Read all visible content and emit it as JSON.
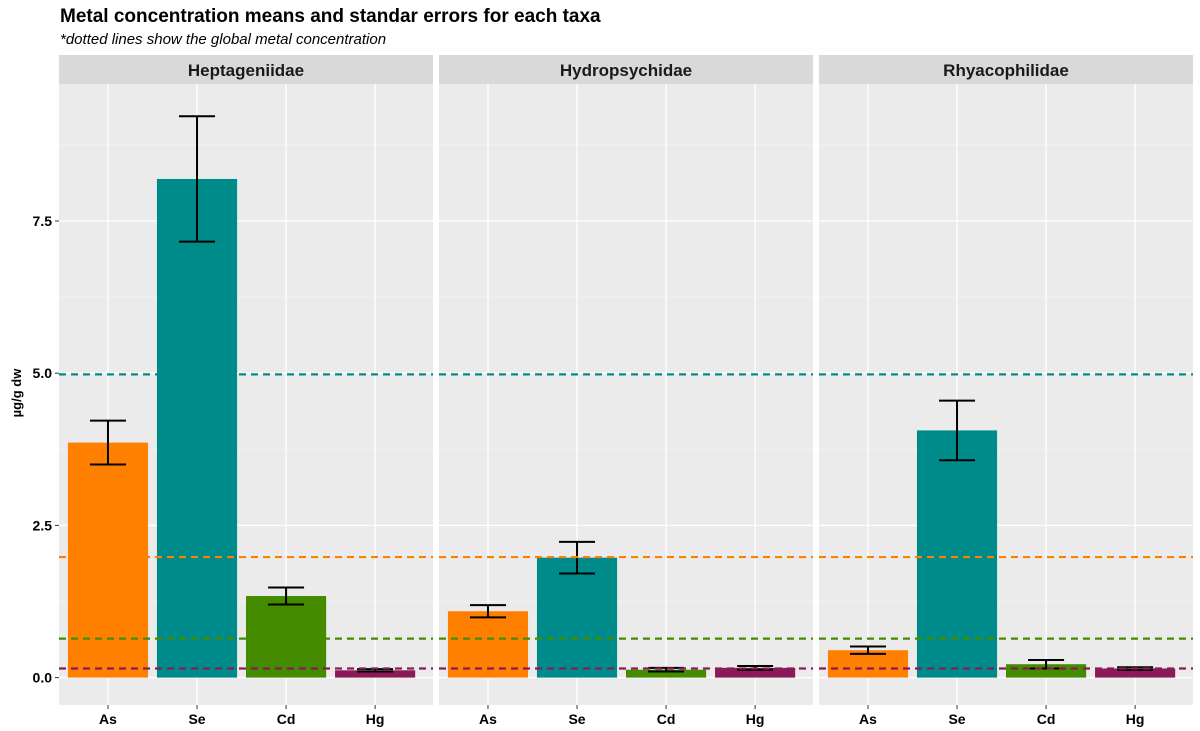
{
  "title": "Metal concentration means and standar errors for each taxa",
  "subtitle": "*dotted lines show the global metal concentration",
  "chart_data": {
    "type": "bar",
    "ylabel": "µg/g dw",
    "xlabel": "",
    "ylim": [
      -0.45,
      9.75
    ],
    "yticks": [
      0.0,
      2.5,
      5.0,
      7.5
    ],
    "ytick_labels": [
      "0.0",
      "2.5",
      "5.0",
      "7.5"
    ],
    "grid": true,
    "categories": [
      "As",
      "Se",
      "Cd",
      "Hg"
    ],
    "colors": {
      "As": "#ff7f00",
      "Se": "#008b8b",
      "Cd": "#458b00",
      "Hg": "#8b1a58"
    },
    "reference_lines": [
      {
        "metal": "Se",
        "value": 4.98,
        "color": "#008b8b"
      },
      {
        "metal": "As",
        "value": 1.98,
        "color": "#ff7f00"
      },
      {
        "metal": "Cd",
        "value": 0.64,
        "color": "#458b00"
      },
      {
        "metal": "Hg",
        "value": 0.15,
        "color": "#8b1a58"
      }
    ],
    "panels": [
      {
        "name": "Heptageniidae",
        "values": [
          3.86,
          8.19,
          1.34,
          0.12
        ],
        "errors": [
          0.36,
          1.03,
          0.14,
          0.02
        ]
      },
      {
        "name": "Hydropsychidae",
        "values": [
          1.09,
          1.97,
          0.13,
          0.16
        ],
        "errors": [
          0.1,
          0.26,
          0.03,
          0.03
        ]
      },
      {
        "name": "Rhyacophilidae",
        "values": [
          0.45,
          4.06,
          0.22,
          0.15
        ],
        "errors": [
          0.06,
          0.49,
          0.07,
          0.02
        ]
      }
    ]
  }
}
